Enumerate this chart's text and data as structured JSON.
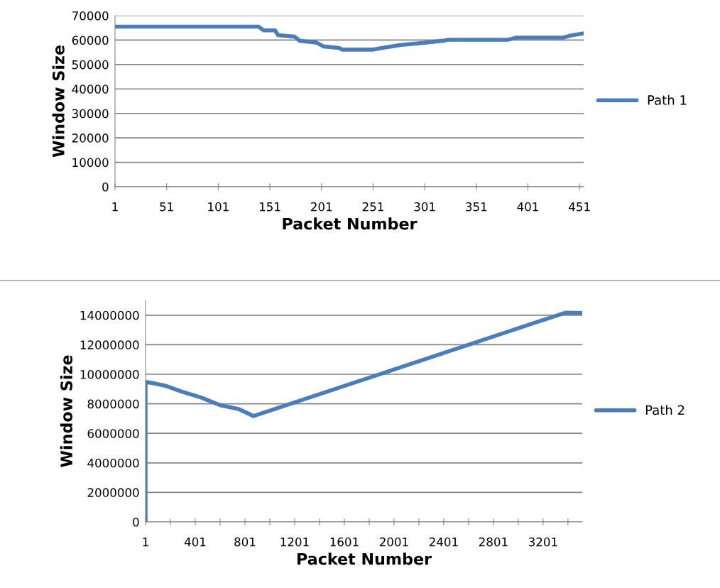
{
  "chart_data": [
    {
      "type": "line",
      "xlabel": "Packet Number",
      "ylabel": "Window Size",
      "xlim": [
        1,
        455
      ],
      "xticks": [
        1,
        51,
        101,
        151,
        201,
        251,
        301,
        351,
        401,
        451
      ],
      "ylim": [
        0,
        70000
      ],
      "yticks": [
        0,
        10000,
        20000,
        30000,
        40000,
        50000,
        60000,
        70000
      ],
      "grid": "y",
      "legend": "right",
      "marker": "none",
      "line_style": "solid",
      "series": [
        {
          "name": "Path 1",
          "color": "#4a7ebb",
          "x": [
            1,
            140,
            145,
            156,
            159,
            175,
            180,
            196,
            203,
            218,
            221,
            251,
            263,
            278,
            299,
            320,
            323,
            381,
            390,
            435,
            441,
            454
          ],
          "values": [
            65500,
            65500,
            64000,
            64000,
            62000,
            61400,
            59700,
            59000,
            57400,
            56800,
            56100,
            56100,
            57000,
            58000,
            58800,
            59800,
            60100,
            60100,
            61000,
            61000,
            61700,
            62700
          ]
        }
      ]
    },
    {
      "type": "line",
      "xlabel": "Packet Number",
      "ylabel": "Window Size",
      "xlim": [
        1,
        3516
      ],
      "xticks": [
        1,
        {
          "value": 201,
          "label": null
        },
        401,
        {
          "value": 601,
          "label": null
        },
        801,
        {
          "value": 1001,
          "label": null
        },
        1201,
        {
          "value": 1401,
          "label": null
        },
        1601,
        {
          "value": 1801,
          "label": null
        },
        2001,
        {
          "value": 2201,
          "label": null
        },
        2401,
        {
          "value": 2601,
          "label": null
        },
        2801,
        {
          "value": 3001,
          "label": null
        },
        3201,
        {
          "value": 3401,
          "label": null
        }
      ],
      "ylim": [
        0,
        15000000
      ],
      "yticks": [
        0,
        2000000,
        4000000,
        6000000,
        8000000,
        10000000,
        12000000,
        14000000
      ],
      "grid": "y",
      "legend": "right",
      "marker": "none",
      "line_style": "solid",
      "series": [
        {
          "name": "Path 2",
          "color": "#4a7ebb",
          "x": [
            1,
            1,
            60,
            160,
            300,
            450,
            600,
            750,
            870,
            3380,
            3516
          ],
          "values": [
            0,
            9480000,
            9400000,
            9220000,
            8800000,
            8420000,
            7910000,
            7640000,
            7170000,
            14170000,
            14150000
          ]
        }
      ]
    }
  ]
}
